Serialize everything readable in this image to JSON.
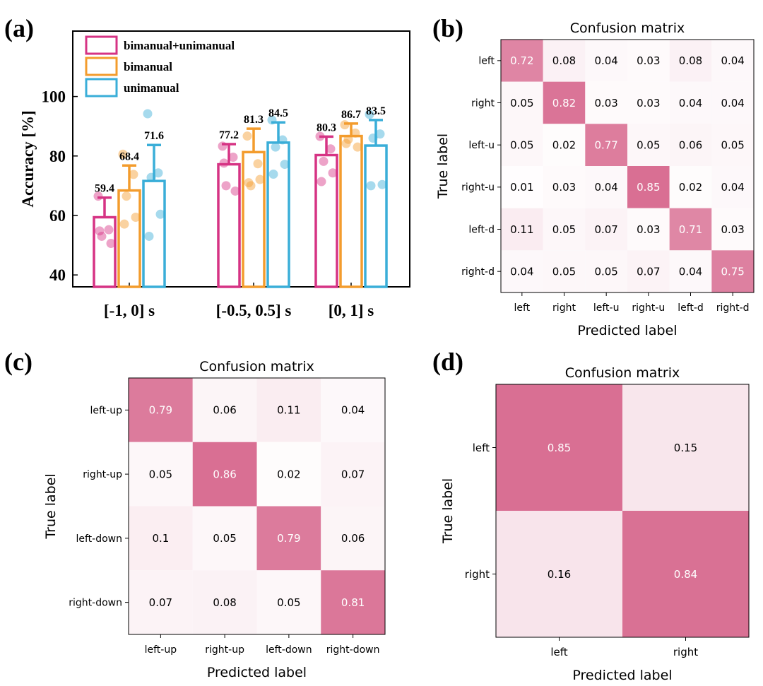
{
  "panel_labels": [
    "(a)",
    "(b)",
    "(c)",
    "(d)"
  ],
  "colors": {
    "bimanual_unimanual": "#d63384",
    "bimanual": "#f39c2d",
    "unimanual": "#3aaed8",
    "cm_dark": "#d96f93",
    "cm_light": "#ffffff"
  },
  "chart_data": [
    {
      "type": "bar",
      "panel": "(a)",
      "categories": [
        "[-1, 0] s",
        "[-0.5, 0.5] s",
        "[0, 1] s"
      ],
      "ylabel": "Accuracy [%]",
      "ylim": [
        36,
        122
      ],
      "yticks": [
        40,
        60,
        80,
        100
      ],
      "legend_position": "top-left",
      "series": [
        {
          "name": "bimanual+unimanual",
          "color_key": "bimanual_unimanual",
          "values": [
            59.4,
            77.2,
            80.3
          ],
          "value_labels": [
            "59.4",
            "77.2",
            "80.3"
          ],
          "errors": [
            6.6,
            6.8,
            6.2
          ],
          "points": [
            [
              66.5,
              55.2,
              53.0,
              50.6,
              54.8
            ],
            [
              83.3,
              79.6,
              70.0,
              68.2,
              77.6
            ],
            [
              86.6,
              82.4,
              78.2,
              74.3,
              71.4
            ]
          ]
        },
        {
          "name": "bimanual",
          "color_key": "bimanual",
          "values": [
            68.4,
            81.3,
            86.7
          ],
          "value_labels": [
            "68.4",
            "81.3",
            "86.7"
          ],
          "errors": [
            8.4,
            7.9,
            4.2
          ],
          "points": [
            [
              80.6,
              73.8,
              66.5,
              59.4,
              57.1
            ],
            [
              86.7,
              77.4,
              70.0,
              72.1,
              71.0
            ],
            [
              90.5,
              87.7,
              85.6,
              83.0,
              84.2
            ]
          ]
        },
        {
          "name": "unimanual",
          "color_key": "unimanual",
          "values": [
            71.6,
            84.5,
            83.5
          ],
          "value_labels": [
            "71.6",
            "84.5",
            "83.5"
          ],
          "errors": [
            12.1,
            6.8,
            8.6
          ],
          "points": [
            [
              94.2,
              74.3,
              72.8,
              60.4,
              53.0
            ],
            [
              92.1,
              85.4,
              83.0,
              77.2,
              73.9
            ],
            [
              94.0,
              87.4,
              86.0,
              70.4,
              70.0
            ]
          ]
        }
      ]
    },
    {
      "type": "heatmap",
      "panel": "(b)",
      "title": "Confusion matrix",
      "xlabel": "Predicted label",
      "ylabel": "True label",
      "labels": [
        "left",
        "right",
        "left-u",
        "right-u",
        "left-d",
        "right-d"
      ],
      "matrix": [
        [
          0.72,
          0.08,
          0.04,
          0.03,
          0.08,
          0.04
        ],
        [
          0.05,
          0.82,
          0.03,
          0.03,
          0.04,
          0.04
        ],
        [
          0.05,
          0.02,
          0.77,
          0.05,
          0.06,
          0.05
        ],
        [
          0.01,
          0.03,
          0.04,
          0.85,
          0.02,
          0.04
        ],
        [
          0.11,
          0.05,
          0.07,
          0.03,
          0.71,
          0.03
        ],
        [
          0.04,
          0.05,
          0.05,
          0.07,
          0.04,
          0.75
        ]
      ]
    },
    {
      "type": "heatmap",
      "panel": "(c)",
      "title": "Confusion matrix",
      "xlabel": "Predicted label",
      "ylabel": "True label",
      "labels": [
        "left-up",
        "right-up",
        "left-down",
        "right-down"
      ],
      "matrix": [
        [
          0.79,
          0.06,
          0.11,
          0.04
        ],
        [
          0.05,
          0.86,
          0.02,
          0.07
        ],
        [
          0.1,
          0.05,
          0.79,
          0.06
        ],
        [
          0.07,
          0.08,
          0.05,
          0.81
        ]
      ]
    },
    {
      "type": "heatmap",
      "panel": "(d)",
      "title": "Confusion matrix",
      "xlabel": "Predicted label",
      "ylabel": "True label",
      "labels": [
        "left",
        "right"
      ],
      "matrix": [
        [
          0.85,
          0.15
        ],
        [
          0.16,
          0.84
        ]
      ]
    }
  ]
}
